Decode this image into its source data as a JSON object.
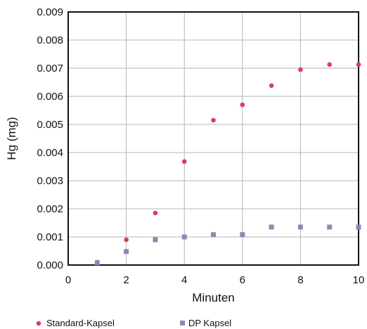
{
  "chart_data": {
    "type": "scatter",
    "title": "",
    "xlabel": "Minuten",
    "ylabel": "Hg (mg)",
    "xlim": [
      0,
      10
    ],
    "ylim": [
      0,
      0.009
    ],
    "grid": true,
    "legend_position": "bottom",
    "x_ticks": [
      "0",
      "2",
      "4",
      "6",
      "8",
      "10"
    ],
    "y_ticks": [
      "0.000",
      "0.001",
      "0.002",
      "0.003",
      "0.004",
      "0.005",
      "0.006",
      "0.007",
      "0.008",
      "0.009"
    ],
    "series": [
      {
        "name": "Standard-Kapsel",
        "marker": "circle",
        "color": "#e03a57",
        "x": [
          1,
          2,
          3,
          4,
          5,
          6,
          7,
          8,
          9,
          10
        ],
        "y": [
          0.0001,
          0.0009,
          0.00185,
          0.00368,
          0.00515,
          0.0057,
          0.00638,
          0.00695,
          0.00713,
          0.00713
        ]
      },
      {
        "name": "DP Kapsel",
        "marker": "square",
        "color": "#9285b5",
        "x": [
          1,
          2,
          3,
          4,
          5,
          6,
          7,
          8,
          9,
          10
        ],
        "y": [
          8e-05,
          0.00048,
          0.0009,
          0.001,
          0.00108,
          0.00108,
          0.00135,
          0.00135,
          0.00135,
          0.00135
        ]
      }
    ]
  }
}
